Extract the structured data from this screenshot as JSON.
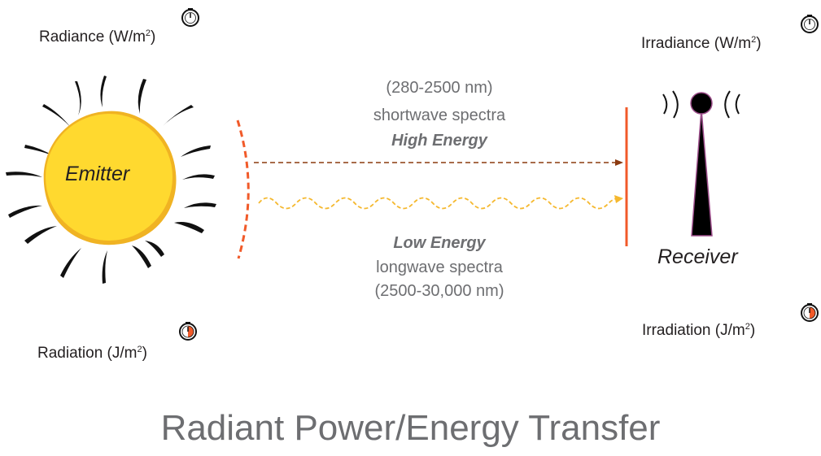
{
  "labels": {
    "radiance_text": "Radiance (W/m",
    "radiance_exp": "2",
    "radiance_close": ")",
    "irradiance_text": "Irradiance  (W/m",
    "irradiance_exp": "2",
    "irradiance_close": ")",
    "radiation_text": "Radiation (J/m",
    "radiation_exp": "2",
    "radiation_close": ")",
    "irradiation_text": "Irradiation  (J/m",
    "irradiation_exp": "2",
    "irradiation_close": ")"
  },
  "shortwave": {
    "range": "(280-2500 nm)",
    "name": "shortwave spectra",
    "energy": "High Energy"
  },
  "longwave": {
    "energy": "Low Energy",
    "name": "longwave spectra",
    "range": "(2500-30,000 nm)"
  },
  "emitter_label": "Emitter",
  "receiver_label": "Receiver",
  "title": "Radiant Power/Energy Transfer",
  "colors": {
    "sun_fill": "#ffd92f",
    "sun_edge": "#f0b323",
    "shortwave_arrow": "#8b3a0f",
    "longwave_arrow": "#f5b82e",
    "barrier": "#f15a29",
    "text_gray": "#6d6e71",
    "antenna": "#000000",
    "antenna_outline": "#9e4f8c"
  },
  "icons": [
    "stopwatch-icon",
    "sun-icon",
    "antenna-icon"
  ]
}
